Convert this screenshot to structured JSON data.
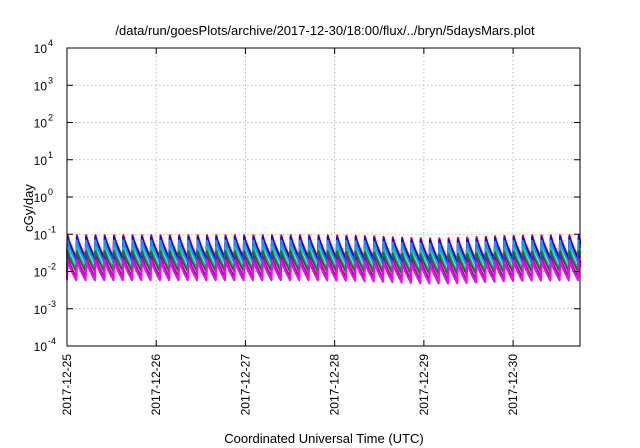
{
  "chart_data": {
    "type": "line",
    "title": "/data/run/goesPlots/archive/2017-12-30/18:00/flux/../bryn/5daysMars.plot",
    "xlabel": "Coordinated Universal Time (UTC)",
    "ylabel": "cGy/day",
    "yscale": "log",
    "ylim": [
      0.0001,
      10000
    ],
    "ytick_base": "10",
    "yticks": [
      {
        "value": 0.0001,
        "exp": "-4"
      },
      {
        "value": 0.001,
        "exp": "-3"
      },
      {
        "value": 0.01,
        "exp": "-2"
      },
      {
        "value": 0.1,
        "exp": "-1"
      },
      {
        "value": 1,
        "exp": "0"
      },
      {
        "value": 10,
        "exp": "1"
      },
      {
        "value": 100,
        "exp": "2"
      },
      {
        "value": 1000,
        "exp": "3"
      },
      {
        "value": 10000,
        "exp": "4"
      }
    ],
    "xlim": [
      "2017-12-25 00:00",
      "2017-12-30 18:00"
    ],
    "xticks": [
      "2017-12-25",
      "2017-12-26",
      "2017-12-27",
      "2017-12-28",
      "2017-12-29",
      "2017-12-30"
    ],
    "grid": true,
    "pattern": {
      "period_hours": 2.5,
      "description": "sawtooth: sharp rise at start of each period, gradual decay"
    },
    "series": [
      {
        "color": "#ff0000",
        "peak": 0.095,
        "trough": 0.024
      },
      {
        "color": "#0000ff",
        "peak": 0.085,
        "trough": 0.021
      },
      {
        "color": "#1e90ff",
        "peak": 0.068,
        "trough": 0.017
      },
      {
        "color": "#00c0c0",
        "peak": 0.045,
        "trough": 0.012
      },
      {
        "color": "#008000",
        "peak": 0.035,
        "trough": 0.01
      },
      {
        "color": "#a000a0",
        "peak": 0.025,
        "trough": 0.0072
      },
      {
        "color": "#ff00ff",
        "peak": 0.02,
        "trough": 0.0058
      }
    ]
  }
}
